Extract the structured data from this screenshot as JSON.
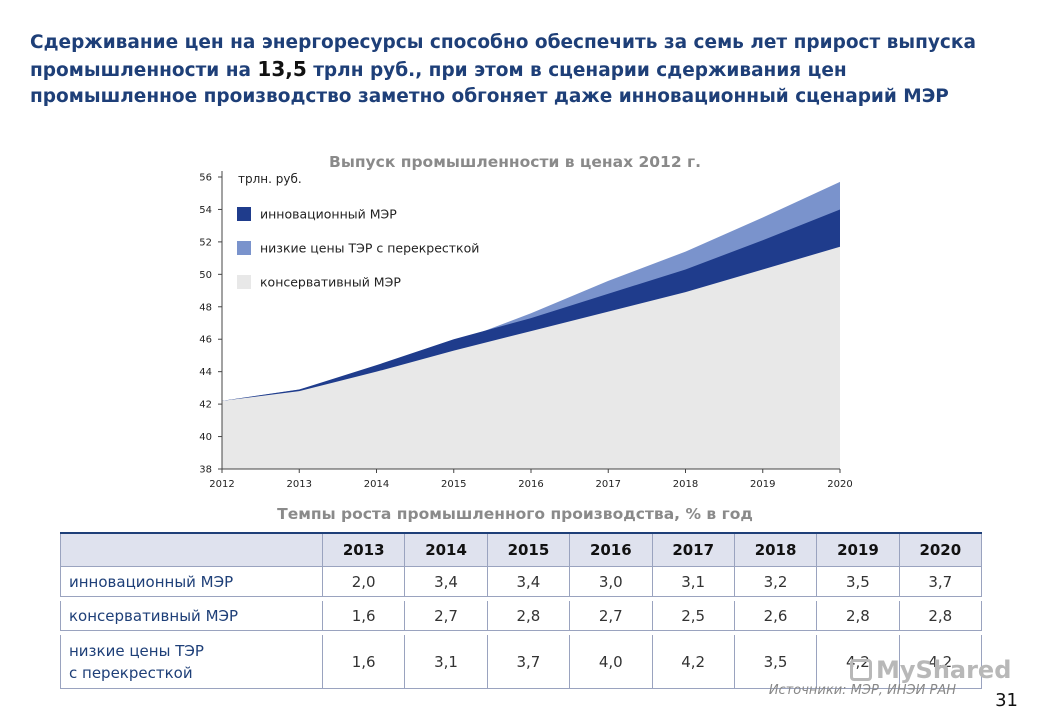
{
  "headline": {
    "part1": "Сдерживание цен на энергоресурсы способно обеспечить за семь лет прирост выпуска промышленности на ",
    "number": "13,5",
    "part2": " трлн руб., при этом в сценарии сдерживания цен промышленное производство заметно обгоняет даже инновационный сценарий МЭР"
  },
  "chart_data": {
    "type": "area",
    "title": "Выпуск промышленности в ценах 2012 г.",
    "ylabel": "трлн. руб.",
    "x": [
      2012,
      2013,
      2014,
      2015,
      2016,
      2017,
      2018,
      2019,
      2020
    ],
    "ylim": [
      38,
      56
    ],
    "yticks": [
      38,
      40,
      42,
      44,
      46,
      48,
      50,
      52,
      54,
      56
    ],
    "series": [
      {
        "name": "низкие цены ТЭР с перекресткой",
        "color": "#7a93cc",
        "values": [
          42.2,
          42.9,
          44.2,
          45.8,
          47.6,
          49.6,
          51.4,
          53.5,
          55.7
        ]
      },
      {
        "name": "инновационный МЭР",
        "color": "#1f3c8c",
        "values": [
          42.2,
          42.9,
          44.4,
          46.0,
          47.3,
          48.8,
          50.3,
          52.1,
          54.0
        ]
      },
      {
        "name": "консервативный МЭР",
        "color": "#e8e8e8",
        "values": [
          42.2,
          42.8,
          44.0,
          45.3,
          46.5,
          47.7,
          48.9,
          50.3,
          51.7
        ]
      }
    ],
    "legend": [
      {
        "label": "инновационный МЭР",
        "color": "#1f3c8c"
      },
      {
        "label": "низкие цены ТЭР с перекресткой",
        "color": "#7a93cc"
      },
      {
        "label": "консервативный МЭР",
        "color": "#e8e8e8"
      }
    ]
  },
  "table": {
    "title": "Темпы роста промышленного производства, % в год",
    "headers": [
      "2013",
      "2014",
      "2015",
      "2016",
      "2017",
      "2018",
      "2019",
      "2020"
    ],
    "rows": [
      {
        "label": "инновационный МЭР",
        "values": [
          "2,0",
          "3,4",
          "3,4",
          "3,0",
          "3,1",
          "3,2",
          "3,5",
          "3,7"
        ]
      },
      {
        "label": "консервативный МЭР",
        "values": [
          "1,6",
          "2,7",
          "2,8",
          "2,7",
          "2,5",
          "2,6",
          "2,8",
          "2,8"
        ]
      },
      {
        "label_line1": "низкие цены ТЭР",
        "label_line2": "с перекресткой",
        "values": [
          "1,6",
          "3,1",
          "3,7",
          "4,0",
          "4,2",
          "3,5",
          "4,2",
          "4,2"
        ]
      }
    ]
  },
  "source": "Источники: МЭР, ИНЭИ РАН",
  "page_number": "31",
  "watermark": "MyShared"
}
